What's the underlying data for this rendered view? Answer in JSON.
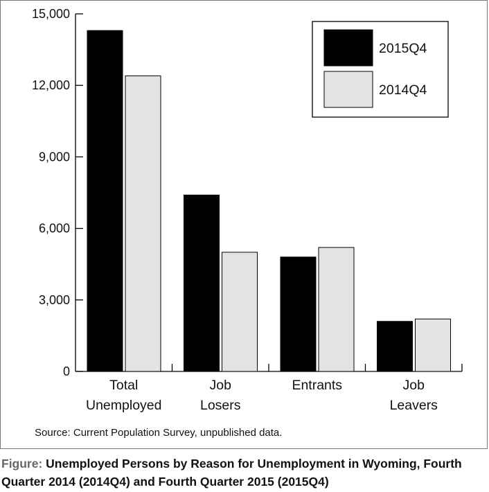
{
  "chart_data": {
    "type": "bar",
    "categories": [
      [
        "Total",
        "Unemployed"
      ],
      [
        "Job",
        "Losers"
      ],
      [
        "Entrants"
      ],
      [
        "Job",
        "Leavers"
      ]
    ],
    "series": [
      {
        "name": "2015Q4",
        "color": "#000000",
        "values": [
          14300,
          7400,
          4800,
          2100
        ]
      },
      {
        "name": "2014Q4",
        "color": "#e3e3e5",
        "values": [
          12400,
          5000,
          5200,
          2200
        ]
      }
    ],
    "ylim": [
      0,
      15000
    ],
    "yticks": [
      "0",
      "3,000",
      "6,000",
      "9,000",
      "12,000",
      "15,000"
    ],
    "ytick_values": [
      0,
      3000,
      6000,
      9000,
      12000,
      15000
    ],
    "legend_placement": "top-right",
    "grid": false
  },
  "source": "Source: Current Population Survey, unpublished data.",
  "caption": {
    "prefix": "Figure: ",
    "text": "Unemployed Persons by Reason for Unemployment in Wyoming, Fourth Quarter 2014 (2014Q4) and Fourth Quarter 2015 (2015Q4)"
  }
}
